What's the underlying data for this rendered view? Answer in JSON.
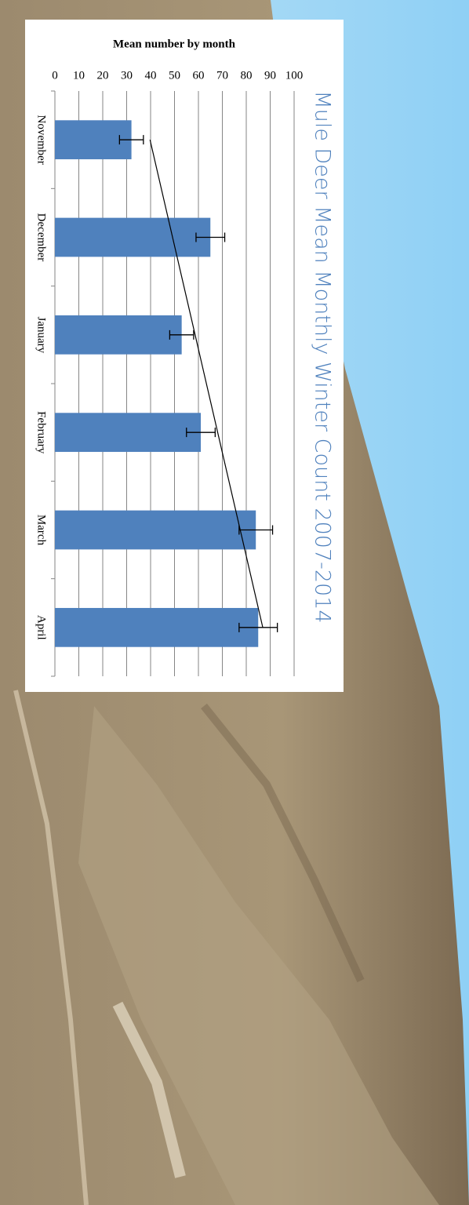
{
  "chart_data": {
    "type": "bar",
    "title": "Mule Deer Mean Monthly Winter Count 2007-2014",
    "y_label": "Mean number  by month",
    "categories": [
      "November",
      "December",
      "January",
      "February",
      "March",
      "April"
    ],
    "values": [
      32,
      65,
      53,
      61,
      84,
      85
    ],
    "errors": [
      5,
      6,
      5,
      6,
      7,
      8
    ],
    "color": "#4f81bd",
    "ylim": [
      0,
      100
    ],
    "yticks": [
      0,
      10,
      20,
      30,
      40,
      50,
      60,
      70,
      80,
      90,
      100
    ],
    "grid": true,
    "trendline": "linear"
  }
}
